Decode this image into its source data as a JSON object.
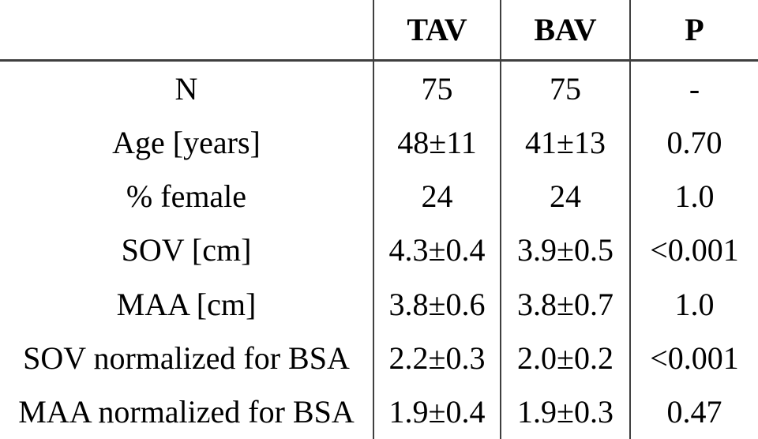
{
  "table": {
    "headers": {
      "label": "",
      "tav": "TAV",
      "bav": "BAV",
      "p": "P"
    },
    "rows": [
      {
        "label": "N",
        "tav": "75",
        "bav": "75",
        "p": "-"
      },
      {
        "label": "Age [years]",
        "tav": "48±11",
        "bav": "41±13",
        "p": "0.70"
      },
      {
        "label": "% female",
        "tav": "24",
        "bav": "24",
        "p": "1.0"
      },
      {
        "label": "SOV [cm]",
        "tav": "4.3±0.4",
        "bav": "3.9±0.5",
        "p": "<0.001"
      },
      {
        "label": "MAA [cm]",
        "tav": "3.8±0.6",
        "bav": "3.8±0.7",
        "p": "1.0"
      },
      {
        "label": "SOV normalized for BSA",
        "tav": "2.2±0.3",
        "bav": "2.0±0.2",
        "p": "<0.001"
      },
      {
        "label": "MAA normalized for BSA",
        "tav": "1.9±0.4",
        "bav": "1.9±0.3",
        "p": "0.47"
      }
    ]
  },
  "colors": {
    "rule": "#3f3f3f",
    "text": "#000000",
    "background": "#ffffff"
  },
  "chart_data": {
    "type": "table",
    "title": "",
    "columns": [
      "",
      "TAV",
      "BAV",
      "P"
    ],
    "rows": [
      [
        "N",
        "75",
        "75",
        "-"
      ],
      [
        "Age [years]",
        "48±11",
        "41±13",
        "0.70"
      ],
      [
        "% female",
        "24",
        "24",
        "1.0"
      ],
      [
        "SOV [cm]",
        "4.3±0.4",
        "3.9±0.5",
        "<0.001"
      ],
      [
        "MAA [cm]",
        "3.8±0.6",
        "3.8±0.7",
        "1.0"
      ],
      [
        "SOV normalized for BSA",
        "2.2±0.3",
        "2.0±0.2",
        "<0.001"
      ],
      [
        "MAA normalized for BSA",
        "1.9±0.4",
        "1.9±0.3",
        "0.47"
      ]
    ]
  }
}
